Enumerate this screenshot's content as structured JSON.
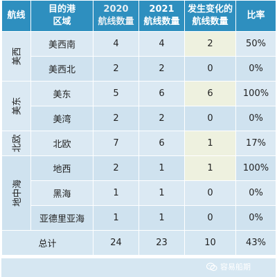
{
  "header": {
    "col1": "航线",
    "col2_line1": "目的港",
    "col2_line2": "区域",
    "col3_line1": "2020",
    "col3_line2": "航线数量",
    "col4_line1": "2021",
    "col4_line2": "航线数量",
    "col5_line1": "发生变化的",
    "col5_line2": "航线数量",
    "col6": "比率"
  },
  "groups": [
    {
      "region": "美西",
      "rows": [
        {
          "dest": "美西南",
          "y2020": "4",
          "y2021": "4",
          "changed": "2",
          "ratio": "50%",
          "hl": true
        },
        {
          "dest": "美西北",
          "y2020": "2",
          "y2021": "2",
          "changed": "0",
          "ratio": "0%",
          "hl": false
        }
      ]
    },
    {
      "region": "美东",
      "rows": [
        {
          "dest": "美东",
          "y2020": "5",
          "y2021": "6",
          "changed": "6",
          "ratio": "100%",
          "hl": true
        },
        {
          "dest": "美湾",
          "y2020": "2",
          "y2021": "2",
          "changed": "0",
          "ratio": "0%",
          "hl": false
        }
      ]
    },
    {
      "region": "北欧",
      "rows": [
        {
          "dest": "北欧",
          "y2020": "7",
          "y2021": "6",
          "changed": "1",
          "ratio": "17%",
          "hl": true
        }
      ]
    },
    {
      "region": "地中海",
      "rows": [
        {
          "dest": "地西",
          "y2020": "2",
          "y2021": "1",
          "changed": "1",
          "ratio": "100%",
          "hl": true
        },
        {
          "dest": "黑海",
          "y2020": "1",
          "y2021": "1",
          "changed": "0",
          "ratio": "0%",
          "hl": false
        },
        {
          "dest": "亚德里亚海",
          "y2020": "1",
          "y2021": "1",
          "changed": "0",
          "ratio": "0%",
          "hl": false
        }
      ]
    }
  ],
  "total": {
    "label": "总计",
    "y2020": "24",
    "y2021": "23",
    "changed": "10",
    "ratio": "43%"
  },
  "watermark": "容易船期"
}
